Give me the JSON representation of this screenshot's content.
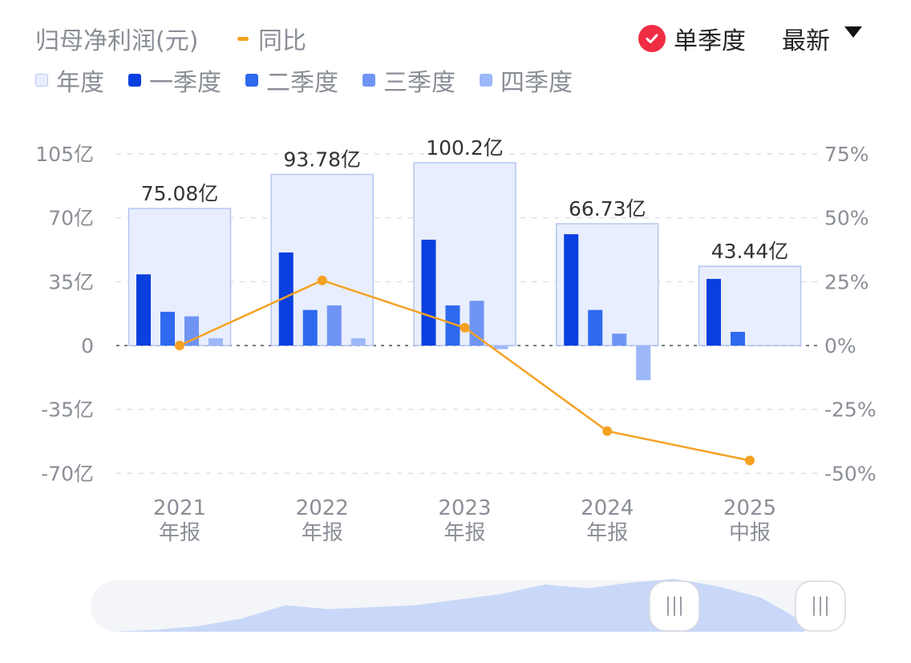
{
  "header": {
    "title": "归母净利润(元)",
    "yoy_label": "同比",
    "single_quarter_label": "单季度",
    "latest_label": "最新"
  },
  "legend": {
    "items": [
      "年度",
      "一季度",
      "二季度",
      "三季度",
      "四季度"
    ]
  },
  "colors": {
    "annual_fill": "#e8eefd",
    "annual_border": "#b5c6f2",
    "q1": "#0a3fe0",
    "q2": "#2f69ee",
    "q3": "#6f94f4",
    "q4": "#9db8f8",
    "yoy_line": "#f5a122",
    "check": "#ef2d45"
  },
  "chart_data": {
    "type": "bar",
    "categories": [
      {
        "year": "2021",
        "period": "年报"
      },
      {
        "year": "2022",
        "period": "年报"
      },
      {
        "year": "2023",
        "period": "年报"
      },
      {
        "year": "2024",
        "period": "年报"
      },
      {
        "year": "2025",
        "period": "中报"
      }
    ],
    "annual_values": [
      75.08,
      93.78,
      100.2,
      66.73,
      43.44
    ],
    "annual_labels": [
      "75.08亿",
      "93.78亿",
      "100.2亿",
      "66.73亿",
      "43.44亿"
    ],
    "quarter_series": [
      {
        "name": "一季度",
        "values": [
          39,
          51,
          58,
          61,
          36.5
        ]
      },
      {
        "name": "二季度",
        "values": [
          18.5,
          19.5,
          22,
          19.5,
          7.5
        ]
      },
      {
        "name": "三季度",
        "values": [
          16,
          22,
          24.5,
          6.5,
          0
        ]
      },
      {
        "name": "四季度",
        "values": [
          4,
          4,
          -2,
          -19,
          0
        ]
      }
    ],
    "yoy_series": {
      "name": "同比",
      "values": [
        0,
        25.5,
        7,
        -33.5,
        -45
      ]
    },
    "y_left": {
      "ticks": [
        105,
        70,
        35,
        0,
        -35,
        -70
      ],
      "tick_labels": [
        "105亿",
        "70亿",
        "35亿",
        "0",
        "-35亿",
        "-70亿"
      ],
      "range": [
        -70,
        105
      ]
    },
    "y_right": {
      "ticks": [
        75,
        50,
        25,
        0,
        -25,
        -50
      ],
      "tick_labels": [
        "75%",
        "50%",
        "25%",
        "0%",
        "-25%",
        "-50%"
      ],
      "range": [
        -50,
        75
      ]
    },
    "grid": true
  },
  "navigator": {
    "area_values": [
      0,
      1,
      3,
      7,
      14,
      12,
      13,
      14,
      17,
      20,
      25,
      23,
      26,
      28,
      24,
      18,
      5
    ]
  }
}
